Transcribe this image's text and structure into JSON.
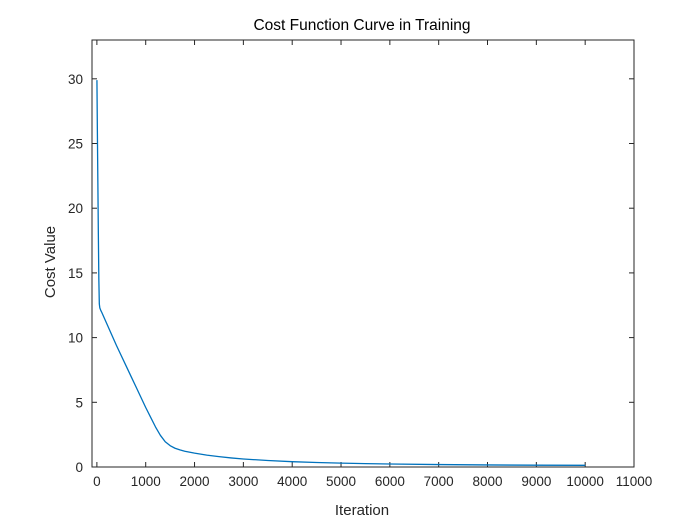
{
  "chart_data": {
    "type": "line",
    "title": "Cost Function Curve in Training",
    "xlabel": "Iteration",
    "ylabel": "Cost Value",
    "xlim": [
      -100,
      11000
    ],
    "ylim": [
      0,
      33
    ],
    "xticks": [
      0,
      1000,
      2000,
      3000,
      4000,
      5000,
      6000,
      7000,
      8000,
      9000,
      10000,
      11000
    ],
    "xtick_labels": [
      "0",
      "1000",
      "2000",
      "3000",
      "4000",
      "5000",
      "6000",
      "7000",
      "8000",
      "9000",
      "10000",
      "11000"
    ],
    "yticks": [
      0,
      5,
      10,
      15,
      20,
      25,
      30
    ],
    "ytick_labels": [
      "0",
      "5",
      "10",
      "15",
      "20",
      "25",
      "30"
    ],
    "grid": false,
    "box": true,
    "line_color": "#0072BD",
    "series": [
      {
        "x": [
          1,
          10,
          20,
          30,
          40,
          50,
          60,
          80,
          100,
          200,
          300,
          400,
          500,
          600,
          700,
          800,
          900,
          1000,
          1100,
          1200,
          1300,
          1400,
          1500,
          1600,
          1700,
          1800,
          2000,
          2250,
          2500,
          2750,
          3000,
          3500,
          4000,
          4500,
          5000,
          5500,
          6000,
          7000,
          8000,
          9000,
          10000
        ],
        "y": [
          29.9,
          26.0,
          22.0,
          18.0,
          14.5,
          12.6,
          12.3,
          12.1,
          11.95,
          11.1,
          10.25,
          9.4,
          8.6,
          7.8,
          7.0,
          6.2,
          5.4,
          4.6,
          3.85,
          3.1,
          2.45,
          1.95,
          1.65,
          1.45,
          1.32,
          1.22,
          1.07,
          0.92,
          0.8,
          0.7,
          0.62,
          0.5,
          0.41,
          0.35,
          0.3,
          0.26,
          0.23,
          0.19,
          0.16,
          0.14,
          0.13
        ]
      }
    ]
  }
}
